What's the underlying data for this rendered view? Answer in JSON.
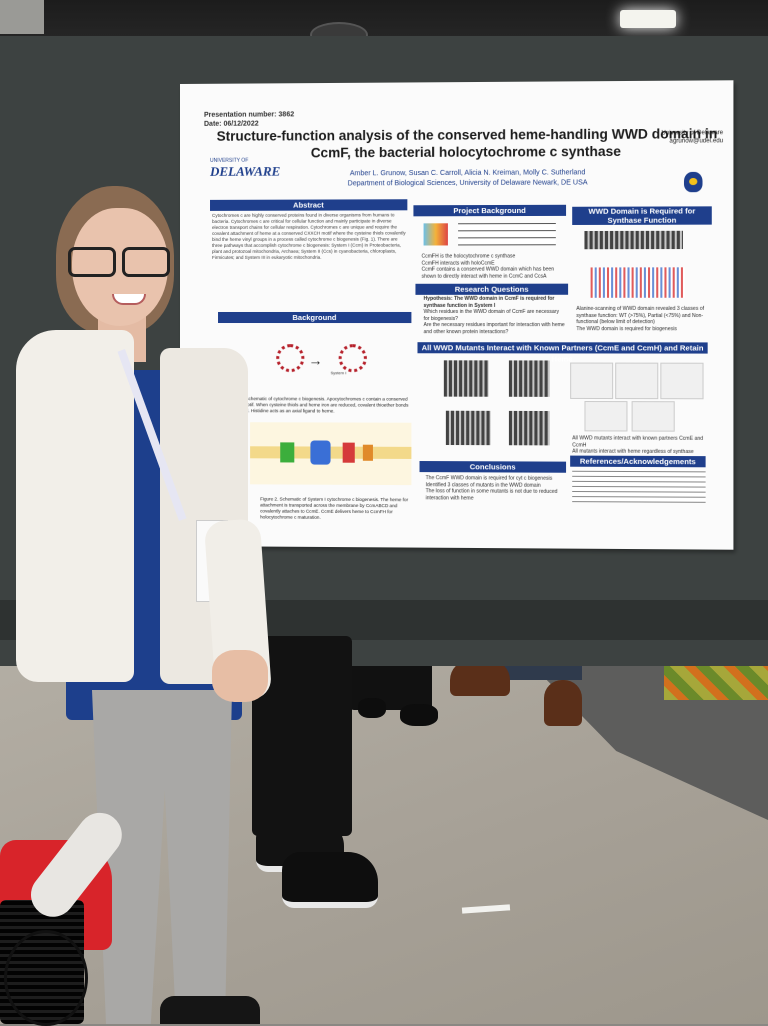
{
  "poster": {
    "presentation_number": "Presentation number: 3862",
    "date": "Date: 06/12/2022",
    "title": "Structure-function analysis of the conserved heme-handling WWD domain in CcmF, the bacterial holocytochrome c synthase",
    "authors": "Amber L. Grunow, Susan C. Carroll, Alicia N. Kreiman, Molly C. Sutherland",
    "department": "Department of Biological Sciences, University of Delaware Newark, DE USA",
    "affiliation": "University of Delaware",
    "email": "agrunow@udel.edu",
    "logo_line1": "UNIVERSITY OF",
    "logo_line2": "DELAWARE",
    "sections": {
      "abstract": "Abstract",
      "background": "Background",
      "project_background": "Project Background",
      "research_questions": "Research Questions",
      "wwd_required": "WWD Domain is Required for Synthase Function",
      "mutants_interact": "All WWD Mutants Interact with Known Partners (CcmE and CcmH) and Retain Heme",
      "conclusions": "Conclusions",
      "references": "References/Acknowledgements"
    },
    "abstract_text": "Cytochromes c are highly conserved proteins found in diverse organisms from humans to bacteria. Cytochromes c are critical for cellular function and mainly participate in diverse electron transport chains for cellular respiration. Cytochromes c are unique and require the covalent attachment of heme at a conserved CXXCH motif where the cysteine thiols covalently bind the heme vinyl groups in a process called cytochrome c biogenesis (Fig. 1). There are three pathways that accomplish cytochrome c biogenesis: System I (Ccm) in Proteobacteria, plant and protozoal mitochondria, Archaea; System II (Ccs) in cyanobacteria, chloroplasts, Firmicutes; and System III in eukaryotic mitochondria.",
    "figure1_caption": "Figure 1. Schematic of cytochrome c biogenesis. Apocytochromes c contain a conserved CXXCH motif. When cysteine thiols and heme iron are reduced, covalent thioether bonds are formed. Histidine acts as an axial ligand to heme.",
    "figure2_caption": "Figure 2. Schematic of System I cytochrome c biogenesis. The heme for attachment is transported across the membrane by CcmABCD and covalently attaches to CcmE. CcmE delivers heme to CcmFH for holocytochrome c maturation.",
    "project_bullets": [
      "CcmFH is the holocytochrome c synthase",
      "CcmFH interacts with holoCcmE",
      "CcmF contains a conserved WWD domain which has been shown to directly interact with heme in CcmC and CcsA"
    ],
    "research_bullets": [
      "Hypothesis: The WWD domain in CcmF is required for synthase function in System I",
      "Which residues in the WWD domain of CcmF are necessary for biogenesis?",
      "Are the necessary residues important for interaction with heme and other known protein interactions?"
    ],
    "wwd_bullets": [
      "Alanine-scanning of WWD domain revealed 3 classes of synthase function: WT (>75%), Partial (<75%) and Non-functional (below limit of detection)",
      "The WWD domain is required for biogenesis"
    ],
    "mutant_bullets": [
      "All WWD mutants interact with known partners CcmE and CcmH",
      "All mutants interact with heme regardless of synthase function phenotype"
    ],
    "conclusion_bullets": [
      "The CcmF WWD domain is required for cyt c biogenesis",
      "Identified 3 classes of mutants in the WWD domain",
      "The loss of function in some mutants is not due to reduced interaction with heme"
    ],
    "figure_labels": {
      "system_arrow": "System I",
      "apocytochrome": "Apocytochrome c",
      "holocytochrome": "Holocytochrome c"
    }
  },
  "colors": {
    "poster_blue": "#1f3f8c",
    "delaware_gold": "#f3c11b",
    "board_gray": "#3d4241"
  }
}
